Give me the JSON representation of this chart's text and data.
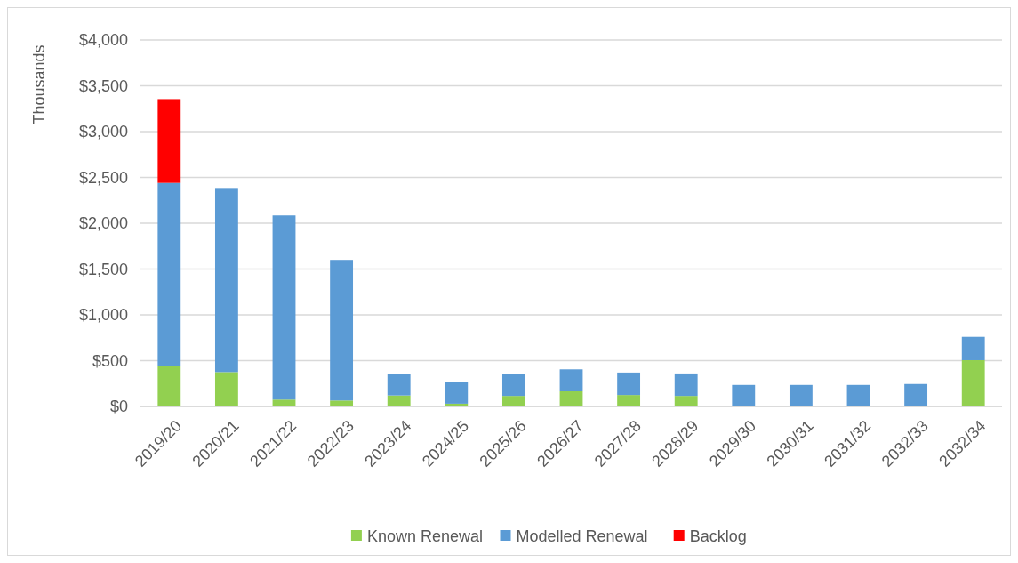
{
  "chart_data": {
    "type": "bar",
    "stacked": true,
    "ylabel": "Thousands",
    "categories": [
      "2019/20",
      "2020/21",
      "2021/22",
      "2022/23",
      "2023/24",
      "2024/25",
      "2025/26",
      "2026/27",
      "2027/28",
      "2028/29",
      "2029/30",
      "2030/31",
      "2031/32",
      "2032/33",
      "2032/34"
    ],
    "series": [
      {
        "name": "Known Renewal",
        "color": "#92d050",
        "values": [
          440,
          375,
          75,
          65,
          120,
          30,
          115,
          165,
          125,
          115,
          0,
          0,
          0,
          0,
          505
        ]
      },
      {
        "name": "Modelled Renewal",
        "color": "#5b9bd5",
        "values": [
          2000,
          2010,
          2010,
          1535,
          235,
          235,
          235,
          240,
          245,
          245,
          235,
          235,
          235,
          245,
          255
        ]
      },
      {
        "name": "Backlog",
        "color": "#ff0000",
        "values": [
          915,
          0,
          0,
          0,
          0,
          0,
          0,
          0,
          0,
          0,
          0,
          0,
          0,
          0,
          0
        ]
      }
    ],
    "ylim": [
      0,
      4000
    ],
    "yticks": [
      {
        "value": 0,
        "label": "$0"
      },
      {
        "value": 500,
        "label": "$500"
      },
      {
        "value": 1000,
        "label": "$1,000"
      },
      {
        "value": 1500,
        "label": "$1,500"
      },
      {
        "value": 2000,
        "label": "$2,000"
      },
      {
        "value": 2500,
        "label": "$2,500"
      },
      {
        "value": 3000,
        "label": "$3,000"
      },
      {
        "value": 3500,
        "label": "$3,500"
      },
      {
        "value": 4000,
        "label": "$4,000"
      }
    ],
    "grid": "y",
    "legend": "bottom"
  }
}
